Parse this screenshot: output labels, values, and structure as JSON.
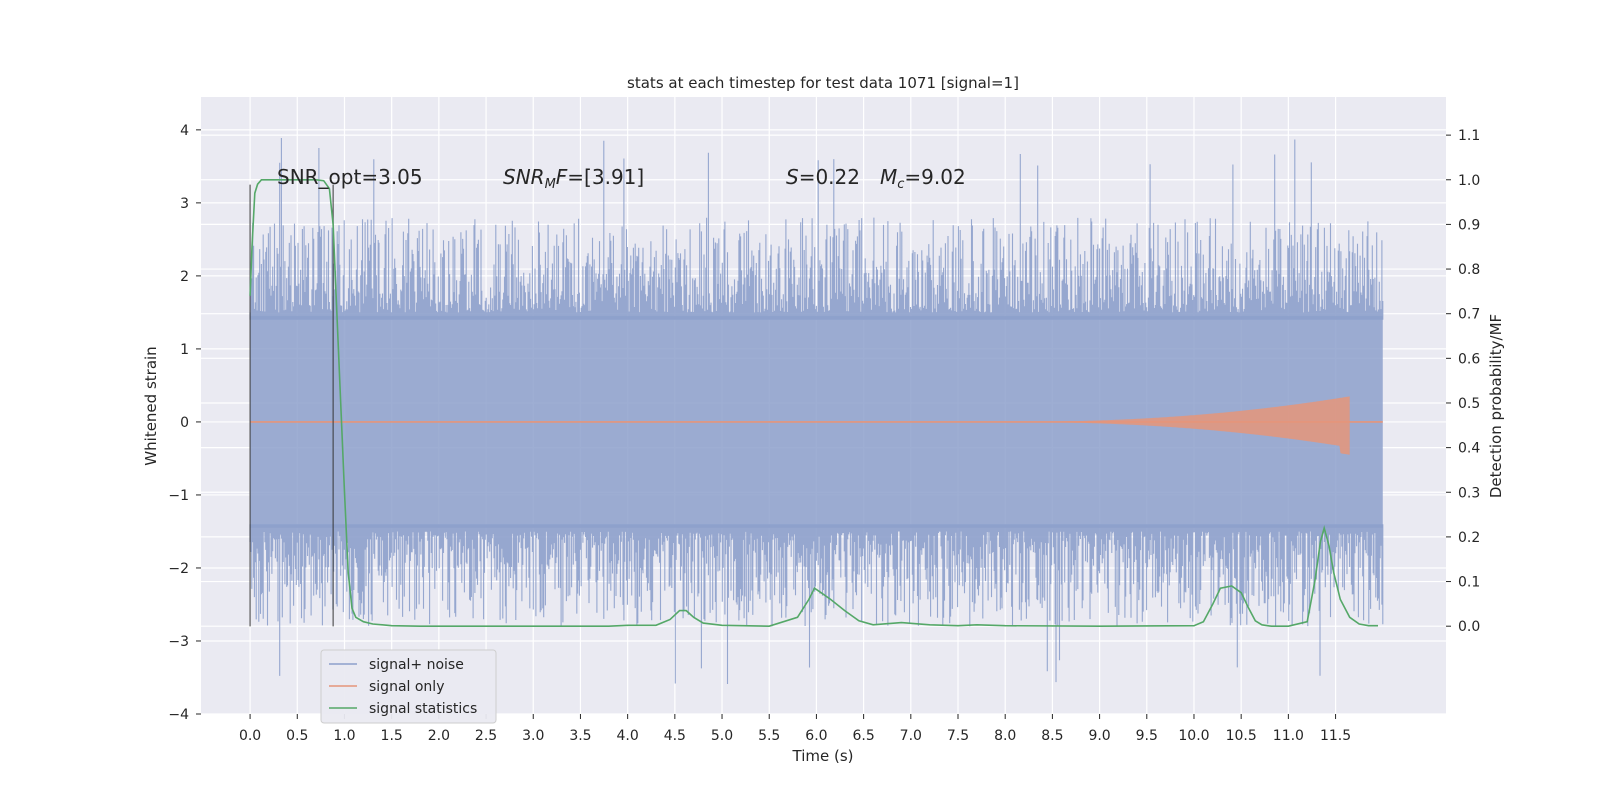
{
  "chart_data": {
    "type": "line",
    "title": "stats at each timestep for test data 1071 [signal=1]",
    "xlabel": "Time (s)",
    "ylabel": "Whitened strain",
    "y2label": "Detection probability/MF",
    "xlim": [
      -0.52,
      12.67
    ],
    "ylim": [
      -4.0,
      4.45
    ],
    "y2lim": [
      -0.1967,
      1.1854
    ],
    "x_ticks": [
      "0.0",
      "0.5",
      "1.0",
      "1.5",
      "2.0",
      "2.5",
      "3.0",
      "3.5",
      "4.0",
      "4.5",
      "5.0",
      "5.5",
      "6.0",
      "6.5",
      "7.0",
      "7.5",
      "8.0",
      "8.5",
      "9.0",
      "9.5",
      "10.0",
      "10.5",
      "11.0",
      "11.5"
    ],
    "y_ticks": [
      "4",
      "3",
      "2",
      "1",
      "0",
      "−1",
      "−2",
      "−3",
      "−4"
    ],
    "y2_ticks": [
      "1.1",
      "1.0",
      "0.9",
      "0.8",
      "0.7",
      "0.6",
      "0.5",
      "0.4",
      "0.3",
      "0.2",
      "0.1",
      "0.0"
    ],
    "grid": true,
    "legend_position": "lower-left",
    "annotations": {
      "snr_opt": "SNR_opt=3.05",
      "snr_mf_italic": "SNR",
      "snr_mf_sub": "M",
      "snr_mf_f": "F",
      "snr_mf_value": "=[3.91]",
      "s_symbol": "S",
      "s_value": "=0.22",
      "mc_symbol": "M",
      "mc_sub": "c",
      "mc_value": "=9.02"
    },
    "markers": [
      {
        "x": 0.0,
        "ymin": -2.8,
        "ymax": 3.25
      },
      {
        "x": 0.88,
        "ymin": -2.8,
        "ymax": 3.25
      }
    ],
    "series": [
      {
        "name": "signal+ noise",
        "color": "#8da0cb",
        "x_range": [
          0.0,
          12.0
        ],
        "band": [
          -1.45,
          1.45
        ],
        "envelope_peak": [
          -3.6,
          3.9
        ]
      },
      {
        "name": "signal only",
        "color": "#e5957a",
        "x_range": [
          0.0,
          12.0
        ],
        "chirp_end": 11.65,
        "chirp_peak": 0.35
      },
      {
        "name": "signal statistics",
        "color": "#55a868",
        "x": [
          0.0,
          0.02,
          0.05,
          0.08,
          0.12,
          0.2,
          0.3,
          0.5,
          0.7,
          0.78,
          0.84,
          0.88,
          0.92,
          0.96,
          1.0,
          1.04,
          1.08,
          1.12,
          1.2,
          1.3,
          1.5,
          1.8,
          2.2,
          3.0,
          3.8,
          4.0,
          4.3,
          4.45,
          4.55,
          4.62,
          4.7,
          4.8,
          5.0,
          5.5,
          5.8,
          5.92,
          5.98,
          6.05,
          6.15,
          6.3,
          6.45,
          6.6,
          6.9,
          7.2,
          7.5,
          7.7,
          8.0,
          9.0,
          10.0,
          10.1,
          10.2,
          10.28,
          10.4,
          10.5,
          10.58,
          10.65,
          10.72,
          10.82,
          11.0,
          11.2,
          11.28,
          11.34,
          11.38,
          11.43,
          11.48,
          11.55,
          11.65,
          11.75,
          11.85,
          11.95
        ],
        "y": [
          0.74,
          0.85,
          0.97,
          0.99,
          1.0,
          1.0,
          1.0,
          1.0,
          1.0,
          0.998,
          0.98,
          0.9,
          0.7,
          0.5,
          0.3,
          0.12,
          0.04,
          0.02,
          0.01,
          0.005,
          0.001,
          0.0,
          0.0,
          0.0,
          0.0,
          0.002,
          0.002,
          0.015,
          0.035,
          0.035,
          0.02,
          0.007,
          0.002,
          0.0,
          0.02,
          0.06,
          0.085,
          0.075,
          0.06,
          0.035,
          0.012,
          0.003,
          0.008,
          0.003,
          0.001,
          0.003,
          0.001,
          0.0,
          0.001,
          0.01,
          0.05,
          0.085,
          0.09,
          0.075,
          0.04,
          0.012,
          0.003,
          0.0,
          0.0,
          0.01,
          0.1,
          0.19,
          0.22,
          0.18,
          0.12,
          0.06,
          0.02,
          0.005,
          0.001,
          0.001
        ]
      }
    ]
  }
}
